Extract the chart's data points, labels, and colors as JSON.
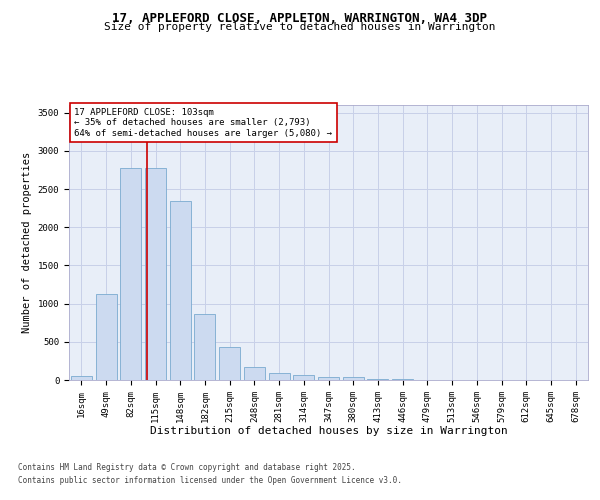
{
  "title": "17, APPLEFORD CLOSE, APPLETON, WARRINGTON, WA4 3DP",
  "subtitle": "Size of property relative to detached houses in Warrington",
  "xlabel": "Distribution of detached houses by size in Warrington",
  "ylabel": "Number of detached properties",
  "footnote1": "Contains HM Land Registry data © Crown copyright and database right 2025.",
  "footnote2": "Contains public sector information licensed under the Open Government Licence v3.0.",
  "bar_labels": [
    "16sqm",
    "49sqm",
    "82sqm",
    "115sqm",
    "148sqm",
    "182sqm",
    "215sqm",
    "248sqm",
    "281sqm",
    "314sqm",
    "347sqm",
    "380sqm",
    "413sqm",
    "446sqm",
    "479sqm",
    "513sqm",
    "546sqm",
    "579sqm",
    "612sqm",
    "645sqm",
    "678sqm"
  ],
  "bar_values": [
    50,
    1130,
    2770,
    2770,
    2340,
    870,
    430,
    170,
    90,
    65,
    40,
    40,
    10,
    10,
    5,
    3,
    2,
    1,
    1,
    0,
    0
  ],
  "bar_color": "#ccdaf0",
  "bar_edge_color": "#7aaad0",
  "grid_color": "#c8d0e8",
  "bg_color": "#e8eef8",
  "vline_color": "#cc0000",
  "annotation_text": "17 APPLEFORD CLOSE: 103sqm\n← 35% of detached houses are smaller (2,793)\n64% of semi-detached houses are larger (5,080) →",
  "annotation_box_facecolor": "white",
  "annotation_box_edgecolor": "#cc0000",
  "ylim": [
    0,
    3600
  ],
  "yticks": [
    0,
    500,
    1000,
    1500,
    2000,
    2500,
    3000,
    3500
  ],
  "title_fontsize": 9,
  "subtitle_fontsize": 8,
  "ylabel_fontsize": 7.5,
  "xlabel_fontsize": 8,
  "tick_fontsize": 6.5,
  "annot_fontsize": 6.5,
  "footnote_fontsize": 5.5
}
